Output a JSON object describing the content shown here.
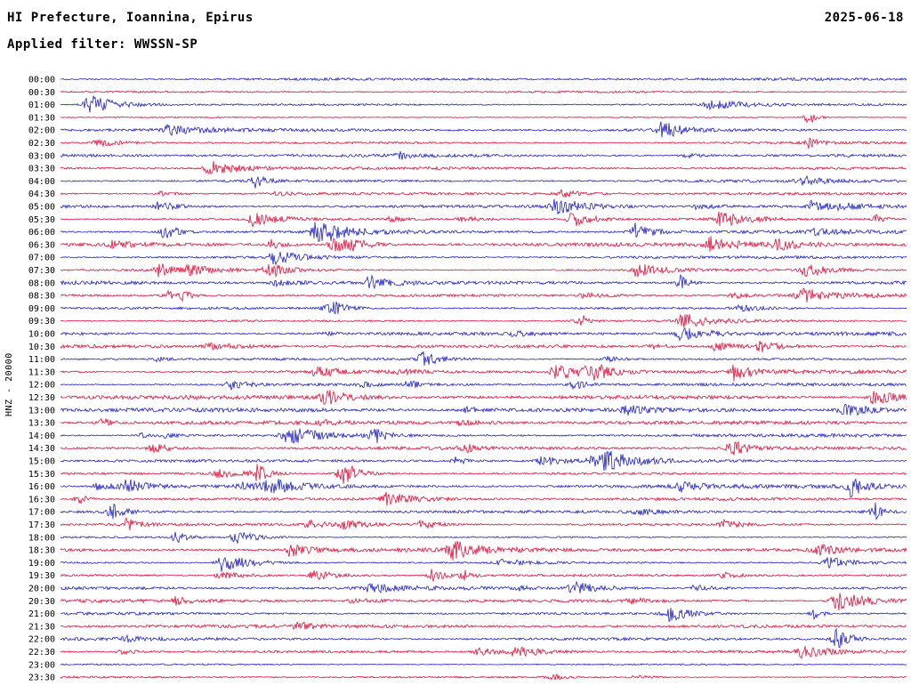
{
  "header": {
    "title": "HI Prefecture, Ioannina, Epirus",
    "date": "2025-06-18",
    "filter": "Applied filter: WWSSN-SP"
  },
  "axis": {
    "label": "HNZ - 20000"
  },
  "chart_data": {
    "type": "line",
    "subtype": "helicorder-seismogram",
    "title": "HI Prefecture, Ioannina, Epirus",
    "date": "2025-06-18",
    "filter": "WWSSN-SP",
    "channel_scale_label": "HNZ - 20000",
    "row_duration_minutes": 30,
    "rows": [
      "00:00",
      "00:30",
      "01:00",
      "01:30",
      "02:00",
      "02:30",
      "03:00",
      "03:30",
      "04:00",
      "04:30",
      "05:00",
      "05:30",
      "06:00",
      "06:30",
      "07:00",
      "07:30",
      "08:00",
      "08:30",
      "09:00",
      "09:30",
      "10:00",
      "10:30",
      "11:00",
      "11:30",
      "12:00",
      "12:30",
      "13:00",
      "13:30",
      "14:00",
      "14:30",
      "15:00",
      "15:30",
      "16:00",
      "16:30",
      "17:00",
      "17:30",
      "18:00",
      "18:30",
      "19:00",
      "19:30",
      "20:00",
      "20:30",
      "21:00",
      "21:30",
      "22:00",
      "22:30",
      "23:00",
      "23:30"
    ],
    "palette": [
      "#2121cc",
      "#e6103a"
    ],
    "background": "#ffffff",
    "legend": "Alternating blue/red traces, one row per 30 minutes, 24 hours total",
    "waveform": "continuous seismic noise band with intermittent higher-amplitude event bursts (individual samples not resolvable from image)"
  }
}
